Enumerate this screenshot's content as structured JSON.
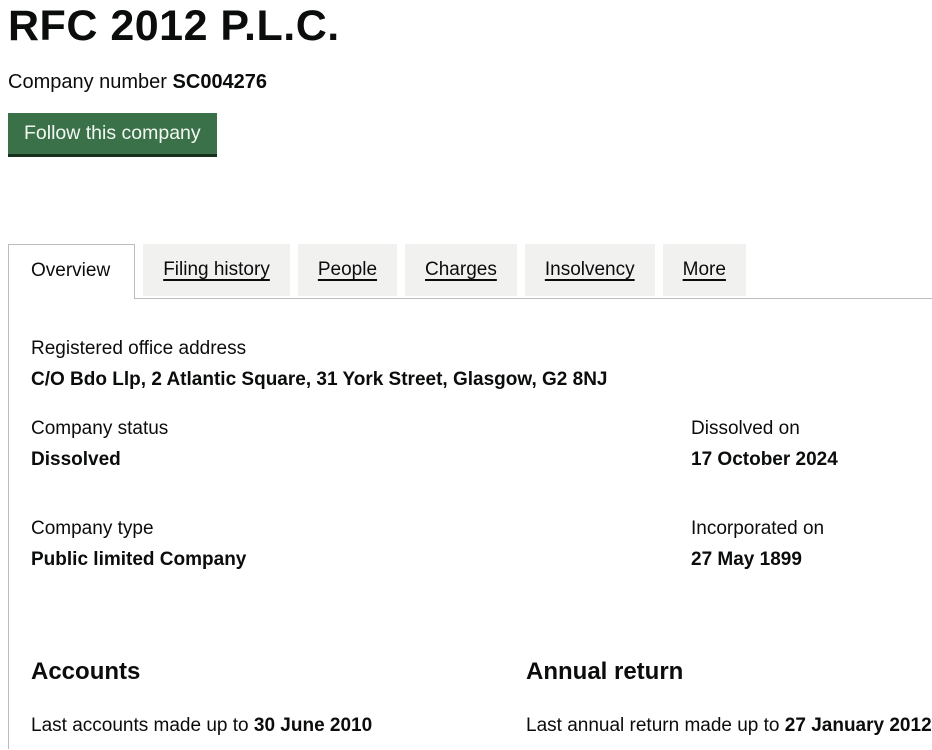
{
  "header": {
    "company_name": "RFC 2012 P.L.C.",
    "company_number_label": "Company number",
    "company_number": "SC004276",
    "follow_button_label": "Follow this company"
  },
  "tabs": {
    "active_tab": "Overview",
    "items": [
      {
        "label": "Overview",
        "active": true
      },
      {
        "label": "Filing history",
        "active": false
      },
      {
        "label": "People",
        "active": false
      },
      {
        "label": "Charges",
        "active": false
      },
      {
        "label": "Insolvency",
        "active": false
      },
      {
        "label": "More",
        "active": false
      }
    ]
  },
  "overview": {
    "registered_office": {
      "label": "Registered office address",
      "value": "C/O Bdo Llp, 2 Atlantic Square, 31 York Street, Glasgow, G2 8NJ"
    },
    "company_status": {
      "label": "Company status",
      "value": "Dissolved"
    },
    "dissolved_on": {
      "label": "Dissolved on",
      "value": "17 October 2024"
    },
    "company_type": {
      "label": "Company type",
      "value": "Public limited Company"
    },
    "incorporated_on": {
      "label": "Incorporated on",
      "value": "27 May 1899"
    },
    "accounts": {
      "heading": "Accounts",
      "text_prefix": "Last accounts made up to",
      "date": "30 June 2010"
    },
    "annual_return": {
      "heading": "Annual return",
      "text_prefix": "Last annual return made up to",
      "date": "27 January 2012"
    }
  },
  "colors": {
    "button_green": "#3b7149",
    "button_shadow": "#17301e",
    "tab_background": "#f1f1f0",
    "panel_border": "#bbbcbb",
    "text": "#0b0c0c"
  }
}
